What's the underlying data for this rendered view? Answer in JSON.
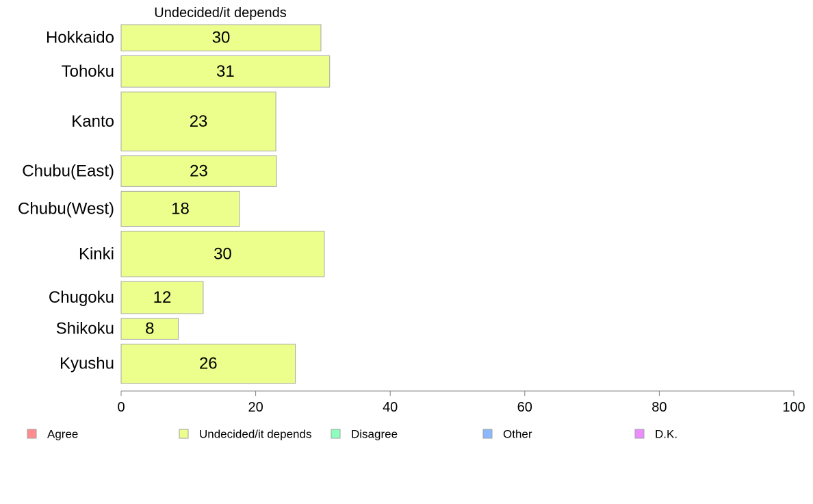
{
  "chart_data": {
    "type": "bar",
    "orientation": "horizontal",
    "title": "Undecided/it depends",
    "categories": [
      "Hokkaido",
      "Tohoku",
      "Kanto",
      "Chubu(East)",
      "Chubu(West)",
      "Kinki",
      "Chugoku",
      "Shikoku",
      "Kyushu"
    ],
    "values": [
      30,
      31,
      23,
      23,
      18,
      30,
      12,
      8,
      26
    ],
    "exact_values": [
      29.7,
      31.0,
      23.0,
      23.1,
      17.6,
      30.2,
      12.2,
      8.5,
      25.9
    ],
    "relative_sample_size": [
      0.72,
      0.86,
      1.62,
      0.84,
      0.96,
      1.25,
      0.88,
      0.57,
      1.08
    ],
    "xlim": [
      0,
      100
    ],
    "xticks": [
      0,
      20,
      40,
      60,
      80,
      100
    ],
    "grid": false,
    "bar_color": "#ecff8c",
    "bar_border_color": "#a6a6a6",
    "legend": {
      "placement": "bottom",
      "items": [
        {
          "label": "Agree",
          "color": "#ff8c8c"
        },
        {
          "label": "Undecided/it depends",
          "color": "#ecff8c"
        },
        {
          "label": "Disagree",
          "color": "#8cffbf"
        },
        {
          "label": "Other",
          "color": "#8cb8ff"
        },
        {
          "label": "D.K.",
          "color": "#ec8cff"
        }
      ]
    }
  }
}
